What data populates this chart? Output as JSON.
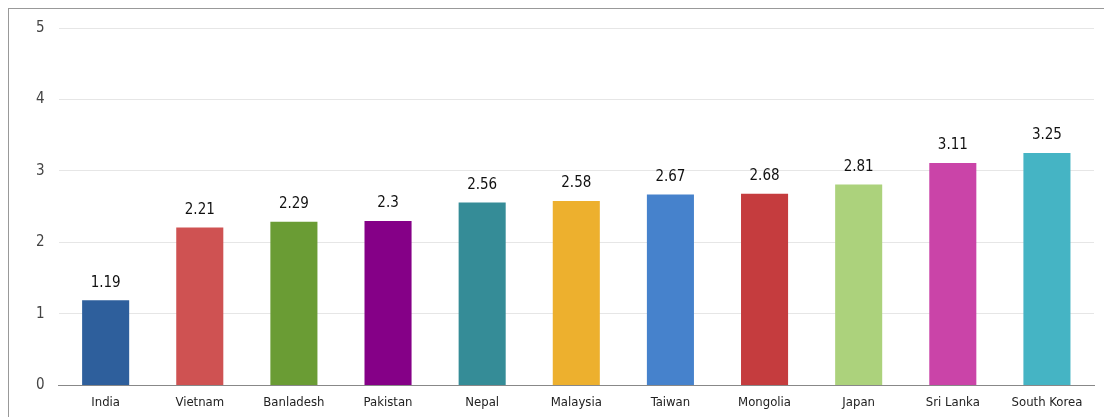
{
  "chart_data": {
    "type": "bar",
    "categories": [
      "India",
      "Vietnam",
      "Banladesh",
      "Pakistan",
      "Nepal",
      "Malaysia",
      "Taiwan",
      "Mongolia",
      "Japan",
      "Sri Lanka",
      "South Korea"
    ],
    "values": [
      1.19,
      2.21,
      2.29,
      2.3,
      2.56,
      2.58,
      2.67,
      2.68,
      2.81,
      3.11,
      3.25
    ],
    "colors": [
      "#2e5f9c",
      "#cf5252",
      "#6a9c34",
      "#850087",
      "#358c97",
      "#edb02e",
      "#4682cc",
      "#c53c3e",
      "#acd27c",
      "#ca44a8",
      "#45b4c4"
    ],
    "ylim": [
      0,
      5
    ],
    "yticks": [
      0,
      1,
      2,
      3,
      4,
      5
    ],
    "grid": "y",
    "data_labels": true
  }
}
